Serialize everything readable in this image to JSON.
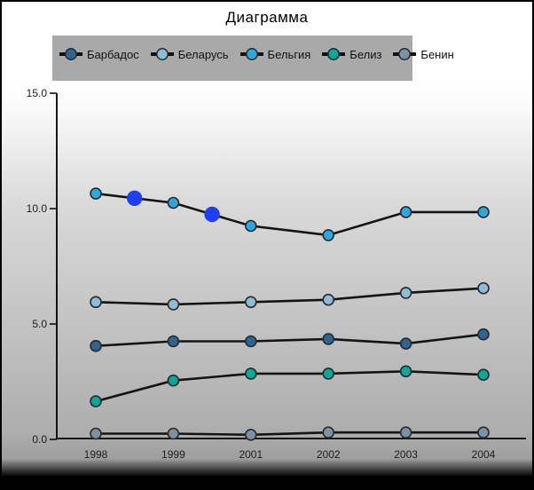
{
  "title": "Диаграмма",
  "chart_data": {
    "type": "line",
    "title": "Диаграмма",
    "categories": [
      "1998",
      "1999",
      "2001",
      "2002",
      "2003",
      "2004"
    ],
    "ylim": [
      0,
      15
    ],
    "y_ticks": [
      {
        "label": "15.0",
        "value": 15
      },
      {
        "label": "10.0",
        "value": 10
      },
      {
        "label": "5.0",
        "value": 5
      },
      {
        "label": "0.0",
        "value": 0
      }
    ],
    "grid": false,
    "legend_position": "top",
    "line_color": "#141414",
    "marker_outline": "#2a2a2a",
    "highlight_color": "#1f3ff0",
    "series": [
      {
        "name": "Барбадос",
        "color": "#2b6593",
        "points": [
          {
            "x": 0,
            "v": 4.05
          },
          {
            "x": 1,
            "v": 4.25
          },
          {
            "x": 2,
            "v": 4.25
          },
          {
            "x": 3,
            "v": 4.35
          },
          {
            "x": 4,
            "v": 4.15
          },
          {
            "x": 5,
            "v": 4.55
          }
        ]
      },
      {
        "name": "Беларусь",
        "color": "#8cbcd8",
        "points": [
          {
            "x": 0,
            "v": 5.95
          },
          {
            "x": 1,
            "v": 5.85
          },
          {
            "x": 2,
            "v": 5.95
          },
          {
            "x": 3,
            "v": 6.05
          },
          {
            "x": 4,
            "v": 6.35
          },
          {
            "x": 5,
            "v": 6.55
          }
        ]
      },
      {
        "name": "Бельгия",
        "color": "#2ea7e0",
        "points": [
          {
            "x": 0,
            "v": 10.65
          },
          {
            "x": 0.5,
            "v": 10.45,
            "big": true
          },
          {
            "x": 1,
            "v": 10.25
          },
          {
            "x": 1.5,
            "v": 9.75,
            "big": true
          },
          {
            "x": 2,
            "v": 9.25
          },
          {
            "x": 3,
            "v": 8.85
          },
          {
            "x": 4,
            "v": 9.85
          },
          {
            "x": 5,
            "v": 9.85
          }
        ]
      },
      {
        "name": "Белиз",
        "color": "#0aa79a",
        "points": [
          {
            "x": 0,
            "v": 1.65
          },
          {
            "x": 1,
            "v": 2.55
          },
          {
            "x": 2,
            "v": 2.85
          },
          {
            "x": 3,
            "v": 2.85
          },
          {
            "x": 4,
            "v": 2.95
          },
          {
            "x": 5,
            "v": 2.8
          }
        ]
      },
      {
        "name": "Бенин",
        "color": "#7b92a5",
        "points": [
          {
            "x": 0,
            "v": 0.25
          },
          {
            "x": 1,
            "v": 0.25
          },
          {
            "x": 2,
            "v": 0.2
          },
          {
            "x": 3,
            "v": 0.3
          },
          {
            "x": 4,
            "v": 0.3
          },
          {
            "x": 5,
            "v": 0.3
          }
        ]
      }
    ]
  }
}
